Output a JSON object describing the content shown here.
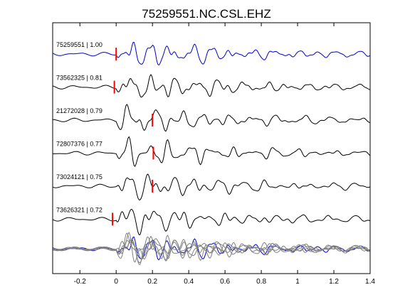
{
  "chart_data": {
    "type": "line",
    "title": "75259551.NC.CSL.EHZ",
    "xlabel": "",
    "ylabel": "",
    "xlim": [
      -0.35,
      1.4
    ],
    "xticks": [
      -0.2,
      0,
      0.2,
      0.4,
      0.6,
      0.8,
      1,
      1.2,
      1.4
    ],
    "xtick_labels": [
      "-0.2",
      "0",
      "0.2",
      "0.4",
      "0.6",
      "0.8",
      "1",
      "1.2",
      "1.4"
    ],
    "grid": false,
    "colors": {
      "reference": "#0000cc",
      "trace": "#000000",
      "stack": "#808080",
      "pick": "#ff0000"
    },
    "series": [
      {
        "name": "75259551 | 1.00",
        "color": "#0000cc",
        "pick_time": 0.0,
        "label": "75259551 | 1.00"
      },
      {
        "name": "73562325 | 0.81",
        "color": "#000000",
        "pick_time": -0.01,
        "label": "73562325 | 0.81"
      },
      {
        "name": "21272028 | 0.79",
        "color": "#000000",
        "pick_time": 0.2,
        "label": "21272028 | 0.79"
      },
      {
        "name": "72807376 | 0.77",
        "color": "#000000",
        "pick_time": 0.205,
        "label": "72807376 | 0.77"
      },
      {
        "name": "73024121 | 0.75",
        "color": "#000000",
        "pick_time": 0.2,
        "label": "73024121 | 0.75"
      },
      {
        "name": "73626321 | 0.72",
        "color": "#000000",
        "pick_time": -0.02,
        "label": "73626321 | 0.72"
      }
    ],
    "stack_overlay": true
  }
}
